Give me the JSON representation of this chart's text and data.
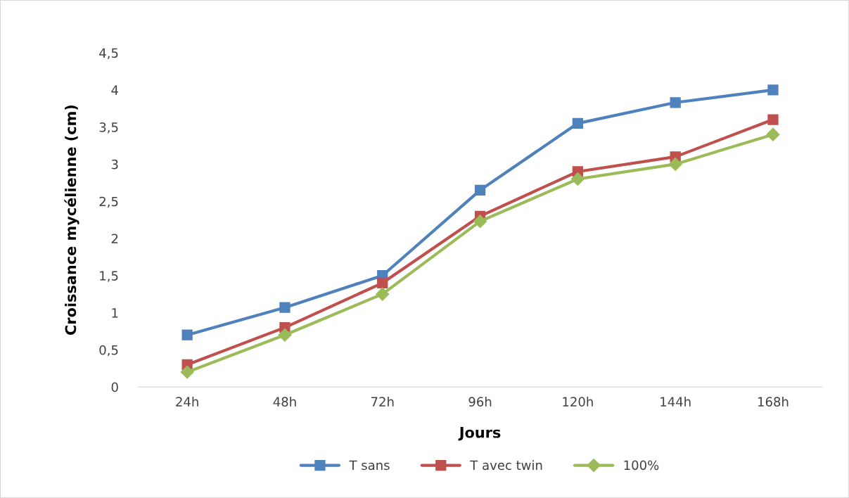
{
  "chart_data": {
    "type": "line",
    "xlabel": "Jours",
    "ylabel": "Croissance mycélienne (cm)",
    "categories": [
      "24h",
      "48h",
      "72h",
      "96h",
      "120h",
      "144h",
      "168h"
    ],
    "series": [
      {
        "name": "T sans",
        "color": "#4f81bd",
        "marker": "square",
        "values": [
          0.7,
          1.07,
          1.5,
          2.65,
          3.55,
          3.83,
          4.0
        ]
      },
      {
        "name": "T avec twin",
        "color": "#c0504d",
        "marker": "square",
        "values": [
          0.3,
          0.8,
          1.4,
          2.3,
          2.9,
          3.1,
          3.6
        ]
      },
      {
        "name": "100%",
        "color": "#9bbb59",
        "marker": "diamond",
        "values": [
          0.2,
          0.7,
          1.25,
          2.23,
          2.8,
          3.0,
          3.4
        ]
      }
    ],
    "ylim": [
      0,
      4.5
    ],
    "yticks": [
      0,
      {
        "value": 0.5,
        "label": "0,5"
      },
      1,
      {
        "value": 1.5,
        "label": "1,5"
      },
      2,
      {
        "value": 2.5,
        "label": "2,5"
      },
      3,
      {
        "value": 3.5,
        "label": "3,5"
      },
      4,
      {
        "value": 4.5,
        "label": "4,5"
      }
    ],
    "grid": false,
    "legend": "bottom",
    "line_style": "solid"
  }
}
